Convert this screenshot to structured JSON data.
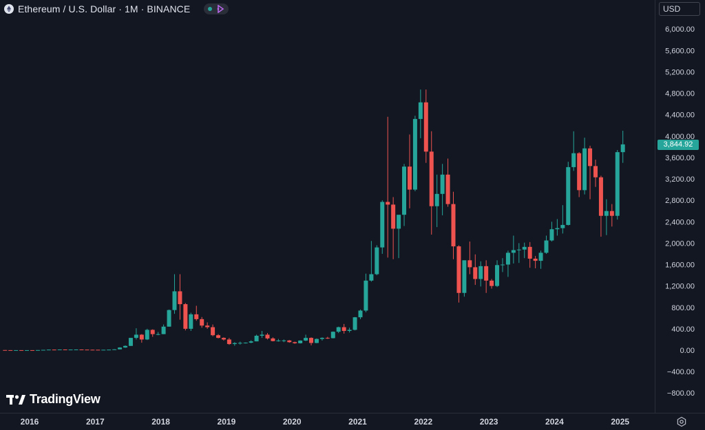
{
  "header": {
    "title": "Ethereum / U.S. Dollar · 1M · BINANCE",
    "icon": "ethereum-icon",
    "badge_icons": [
      "status-dot-icon",
      "indicator-icon"
    ]
  },
  "currency": "USD",
  "last_price_label": "3,844.92",
  "logo_text": "TradingView",
  "colors": {
    "background": "#131722",
    "up": "#26a69a",
    "down": "#ef5350",
    "grid": "#1e222d",
    "axis_text": "#d1d4dc"
  },
  "chart_data": {
    "type": "candlestick",
    "title": "Ethereum / U.S. Dollar · 1M · BINANCE",
    "ylim": [
      -1000,
      6200
    ],
    "y_ticks": [
      -800,
      -400,
      0,
      400,
      800,
      1200,
      1600,
      2000,
      2400,
      2800,
      3200,
      3600,
      4000,
      4400,
      4800,
      5200,
      5600,
      6000
    ],
    "y_tick_labels": [
      "−800.00",
      "−400.00",
      "0.00",
      "400.00",
      "800.00",
      "1,200.00",
      "1,600.00",
      "2,000.00",
      "2,400.00",
      "2,800.00",
      "3,200.00",
      "3,600.00",
      "4,000.00",
      "4,400.00",
      "4,800.00",
      "5,200.00",
      "5,600.00",
      "6,000.00"
    ],
    "x_tick_labels": [
      "2016",
      "2017",
      "2018",
      "2019",
      "2020",
      "2021",
      "2022",
      "2023",
      "2024",
      "2025"
    ],
    "x_tick_years": [
      2016,
      2017,
      2018,
      2019,
      2020,
      2021,
      2022,
      2023,
      2024,
      2025
    ],
    "start_year": 2015,
    "start_month": 8,
    "grid": false,
    "last_price": 3844.92,
    "candles": [
      [
        2.8,
        2.8,
        0.9,
        1.2
      ],
      [
        1.2,
        1.4,
        0.6,
        0.8
      ],
      [
        0.8,
        1.0,
        0.6,
        1.0
      ],
      [
        1.0,
        1.2,
        0.8,
        0.9
      ],
      [
        0.9,
        1.0,
        0.8,
        0.95
      ],
      [
        0.95,
        1.0,
        0.9,
        0.93
      ],
      [
        0.93,
        2.8,
        0.93,
        2.7
      ],
      [
        2.7,
        6.5,
        2.5,
        6.4
      ],
      [
        6.4,
        11.5,
        6.0,
        11.0
      ],
      [
        11.0,
        12.5,
        7.0,
        8.0
      ],
      [
        8.0,
        14.0,
        8.0,
        13.0
      ],
      [
        13.0,
        14.0,
        10.0,
        12.0
      ],
      [
        12.0,
        13.0,
        8.0,
        12.0
      ],
      [
        12.0,
        14.0,
        11.0,
        13.0
      ],
      [
        13.0,
        14.0,
        10.0,
        11.0
      ],
      [
        11.0,
        11.0,
        9.0,
        9.0
      ],
      [
        9.0,
        9.5,
        6.5,
        8.5
      ],
      [
        8.5,
        8.6,
        7.4,
        8.1
      ],
      [
        8.1,
        9.0,
        7.7,
        8.2
      ],
      [
        8.2,
        11.5,
        8.0,
        10.8
      ],
      [
        10.8,
        20.0,
        9.5,
        16.0
      ],
      [
        16.0,
        55.0,
        15.0,
        50.0
      ],
      [
        50.0,
        90.0,
        43.0,
        80.0
      ],
      [
        80.0,
        230.0,
        80.0,
        230.0
      ],
      [
        230.0,
        410.0,
        200.0,
        290.0
      ],
      [
        290.0,
        300.0,
        140.0,
        200.0
      ],
      [
        200.0,
        400.0,
        190.0,
        380.0
      ],
      [
        380.0,
        390.0,
        250.0,
        300.0
      ],
      [
        300.0,
        340.0,
        280.0,
        300.0
      ],
      [
        300.0,
        480.0,
        300.0,
        440.0
      ],
      [
        440.0,
        760.0,
        440.0,
        750.0
      ],
      [
        750.0,
        1420.0,
        680.0,
        1100.0
      ],
      [
        1100.0,
        1420.0,
        570.0,
        860.0
      ],
      [
        860.0,
        880.0,
        370.0,
        400.0
      ],
      [
        400.0,
        700.0,
        360.0,
        670.0
      ],
      [
        670.0,
        830.0,
        550.0,
        580.0
      ],
      [
        580.0,
        620.0,
        420.0,
        460.0
      ],
      [
        460.0,
        520.0,
        400.0,
        430.0
      ],
      [
        430.0,
        480.0,
        260.0,
        280.0
      ],
      [
        280.0,
        300.0,
        220.0,
        230.0
      ],
      [
        230.0,
        240.0,
        180.0,
        200.0
      ],
      [
        200.0,
        230.0,
        100.0,
        115.0
      ],
      [
        115.0,
        150.0,
        83.0,
        133.0
      ],
      [
        133.0,
        160.0,
        105.0,
        137.0
      ],
      [
        137.0,
        145.0,
        125.0,
        141.0
      ],
      [
        141.0,
        185.0,
        130.0,
        165.0
      ],
      [
        165.0,
        290.0,
        165.0,
        270.0
      ],
      [
        270.0,
        360.0,
        230.0,
        290.0
      ],
      [
        290.0,
        320.0,
        200.0,
        220.0
      ],
      [
        220.0,
        240.0,
        165.0,
        170.0
      ],
      [
        170.0,
        210.0,
        160.0,
        180.0
      ],
      [
        180.0,
        200.0,
        150.0,
        182.0
      ],
      [
        182.0,
        190.0,
        140.0,
        150.0
      ],
      [
        150.0,
        160.0,
        120.0,
        130.0
      ],
      [
        130.0,
        185.0,
        125.0,
        180.0
      ],
      [
        180.0,
        290.0,
        170.0,
        230.0
      ],
      [
        230.0,
        240.0,
        90.0,
        135.0
      ],
      [
        135.0,
        220.0,
        130.0,
        210.0
      ],
      [
        210.0,
        240.0,
        180.0,
        230.0
      ],
      [
        230.0,
        250.0,
        210.0,
        225.0
      ],
      [
        225.0,
        350.0,
        220.0,
        345.0
      ],
      [
        345.0,
        440.0,
        320.0,
        430.0
      ],
      [
        430.0,
        490.0,
        310.0,
        360.0
      ],
      [
        360.0,
        420.0,
        330.0,
        380.0
      ],
      [
        380.0,
        620.0,
        370.0,
        615.0
      ],
      [
        615.0,
        760.0,
        580.0,
        740.0
      ],
      [
        740.0,
        1430.0,
        710.0,
        1300.0
      ],
      [
        1300.0,
        2040.0,
        1280.0,
        1420.0
      ],
      [
        1420.0,
        1960.0,
        1400.0,
        1920.0
      ],
      [
        1920.0,
        2800.0,
        1800.0,
        2770.0
      ],
      [
        2770.0,
        4360.0,
        1730.0,
        2720.0
      ],
      [
        2720.0,
        2860.0,
        1700.0,
        2270.0
      ],
      [
        2270.0,
        2510.0,
        1720.0,
        2530.0
      ],
      [
        2530.0,
        3480.0,
        2320.0,
        3430.0
      ],
      [
        3430.0,
        4030.0,
        2650.0,
        3000.0
      ],
      [
        3000.0,
        4380.0,
        2970.0,
        4320.0
      ],
      [
        4320.0,
        4870.0,
        3960.0,
        4630.0
      ],
      [
        4630.0,
        4870.0,
        3500.0,
        3710.0
      ],
      [
        3710.0,
        4090.0,
        2160.0,
        2690.0
      ],
      [
        2690.0,
        3280.0,
        2300.0,
        2920.0
      ],
      [
        2920.0,
        3480.0,
        2520.0,
        3280.0
      ],
      [
        3280.0,
        3580.0,
        2680.0,
        2730.0
      ],
      [
        2730.0,
        2960.0,
        1700.0,
        1940.0
      ],
      [
        1940.0,
        1960.0,
        890.0,
        1070.0
      ],
      [
        1070.0,
        1670.0,
        1000.0,
        1680.0
      ],
      [
        1680.0,
        2030.0,
        1420.0,
        1550.0
      ],
      [
        1550.0,
        1790.0,
        1220.0,
        1330.0
      ],
      [
        1330.0,
        1660.0,
        1190.0,
        1570.0
      ],
      [
        1570.0,
        1680.0,
        1070.0,
        1300.0
      ],
      [
        1300.0,
        1330.0,
        1150.0,
        1200.0
      ],
      [
        1200.0,
        1680.0,
        1180.0,
        1590.0
      ],
      [
        1590.0,
        1720.0,
        1460.0,
        1600.0
      ],
      [
        1600.0,
        1860.0,
        1370.0,
        1820.0
      ],
      [
        1820.0,
        2140.0,
        1620.0,
        1870.0
      ],
      [
        1870.0,
        2000.0,
        1630.0,
        1880.0
      ],
      [
        1880.0,
        2010.0,
        1720.0,
        1930.0
      ],
      [
        1930.0,
        2020.0,
        1540.0,
        1710.0
      ],
      [
        1710.0,
        1760.0,
        1530.0,
        1670.0
      ],
      [
        1670.0,
        1860.0,
        1520.0,
        1820.0
      ],
      [
        1820.0,
        2140.0,
        1800.0,
        2050.0
      ],
      [
        2050.0,
        2400.0,
        2030.0,
        2260.0
      ],
      [
        2260.0,
        2450.0,
        2140.0,
        2280.0
      ],
      [
        2280.0,
        2710.0,
        2180.0,
        2340.0
      ],
      [
        2340.0,
        3520.0,
        2330.0,
        3420.0
      ],
      [
        3420.0,
        4090.0,
        3350.0,
        3680.0
      ],
      [
        3680.0,
        3700.0,
        2860.0,
        2990.0
      ],
      [
        2990.0,
        3970.0,
        2910.0,
        3770.0
      ],
      [
        3770.0,
        3820.0,
        2820.0,
        3440.0
      ],
      [
        3440.0,
        3560.0,
        3050.0,
        3230.0
      ],
      [
        3230.0,
        3260.0,
        2120.0,
        2510.0
      ],
      [
        2510.0,
        2820.0,
        2150.0,
        2600.0
      ],
      [
        2600.0,
        2730.0,
        2310.0,
        2510.0
      ],
      [
        2510.0,
        3740.0,
        2440.0,
        3700.0
      ],
      [
        3700.0,
        4100.0,
        3500.0,
        3844.92
      ]
    ]
  }
}
